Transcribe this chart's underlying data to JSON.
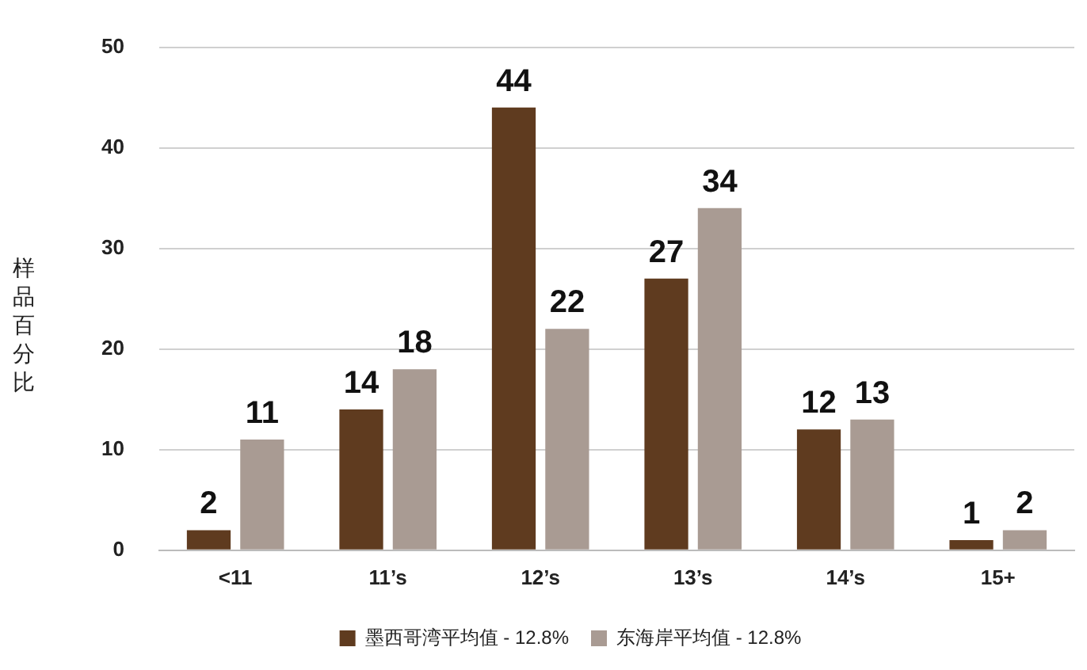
{
  "chart_data": {
    "type": "bar",
    "ylabel": "样品百分比",
    "categories": [
      "<11",
      "11’s",
      "12’s",
      "13’s",
      "14’s",
      "15+"
    ],
    "series": [
      {
        "name": "墨西哥湾平均值 - 12.8%",
        "color": "#5f3b1f",
        "values": [
          2,
          14,
          44,
          27,
          12,
          1
        ]
      },
      {
        "name": "东海岸平均值 - 12.8%",
        "color": "#a99b93",
        "values": [
          11,
          18,
          22,
          34,
          13,
          2
        ]
      }
    ],
    "ylim": [
      0,
      50
    ],
    "yticks": [
      0,
      10,
      20,
      30,
      40,
      50
    ],
    "grid": "y",
    "legend": "bottom",
    "data_labels": true
  }
}
